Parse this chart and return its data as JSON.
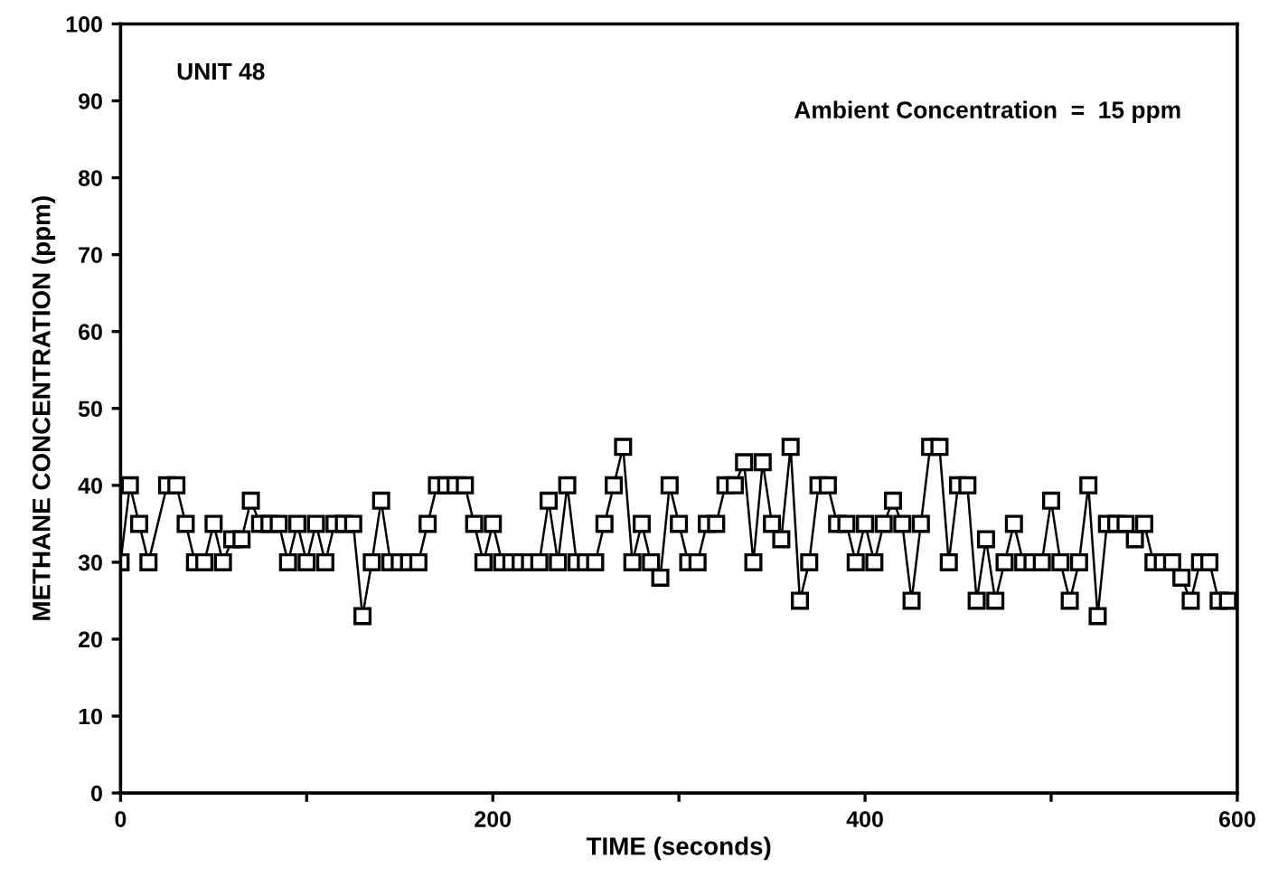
{
  "chart_data": {
    "type": "line",
    "xlabel": "TIME (seconds)",
    "ylabel": "METHANE CONCENTRATION (ppm)",
    "annotations": [
      "UNIT 48",
      "Ambient Concentration  =  15 ppm"
    ],
    "x": [
      0,
      5,
      10,
      15,
      25,
      30,
      35,
      40,
      45,
      50,
      55,
      60,
      65,
      70,
      75,
      80,
      85,
      90,
      95,
      100,
      105,
      110,
      115,
      120,
      125,
      130,
      135,
      140,
      145,
      150,
      155,
      160,
      165,
      170,
      175,
      180,
      185,
      190,
      195,
      200,
      205,
      210,
      215,
      220,
      225,
      230,
      235,
      240,
      245,
      250,
      255,
      260,
      265,
      270,
      275,
      280,
      285,
      290,
      295,
      300,
      305,
      310,
      315,
      320,
      325,
      330,
      335,
      340,
      345,
      350,
      355,
      360,
      365,
      370,
      375,
      380,
      385,
      390,
      395,
      400,
      405,
      410,
      415,
      420,
      425,
      430,
      435,
      440,
      445,
      450,
      455,
      460,
      465,
      470,
      475,
      480,
      485,
      490,
      495,
      500,
      505,
      510,
      515,
      520,
      525,
      530,
      535,
      540,
      545,
      550,
      555,
      560,
      565,
      570,
      575,
      580,
      585,
      590,
      595
    ],
    "series": [
      {
        "color": "#000000",
        "values": [
          30,
          40,
          35,
          30,
          40,
          40,
          35,
          30,
          30,
          35,
          30,
          33,
          33,
          38,
          35,
          35,
          35,
          30,
          35,
          30,
          35,
          30,
          35,
          35,
          35,
          23,
          30,
          38,
          30,
          30,
          30,
          30,
          35,
          40,
          40,
          40,
          40,
          35,
          30,
          35,
          30,
          30,
          30,
          30,
          30,
          38,
          30,
          40,
          30,
          30,
          30,
          35,
          40,
          45,
          30,
          35,
          30,
          28,
          40,
          35,
          30,
          30,
          35,
          35,
          40,
          40,
          43,
          30,
          43,
          35,
          33,
          45,
          25,
          30,
          40,
          40,
          35,
          35,
          30,
          35,
          30,
          35,
          38,
          35,
          25,
          35,
          45,
          45,
          30,
          40,
          40,
          25,
          33,
          25,
          30,
          35,
          30,
          30,
          30,
          38,
          30,
          25,
          30,
          40,
          23,
          35,
          35,
          35,
          33,
          35,
          30,
          30,
          30,
          28,
          25,
          30,
          30,
          25,
          25
        ]
      }
    ],
    "xlim": [
      0,
      600
    ],
    "ylim": [
      0,
      100
    ],
    "xticks": [
      0,
      {
        "value": 100,
        "label": null
      },
      200,
      {
        "value": 300,
        "label": null
      },
      400,
      {
        "value": 500,
        "label": null
      },
      600
    ],
    "yticks": [
      0,
      10,
      20,
      30,
      40,
      50,
      60,
      70,
      80,
      90,
      100
    ],
    "marker": "square",
    "line_style": "solid",
    "grid": false
  }
}
